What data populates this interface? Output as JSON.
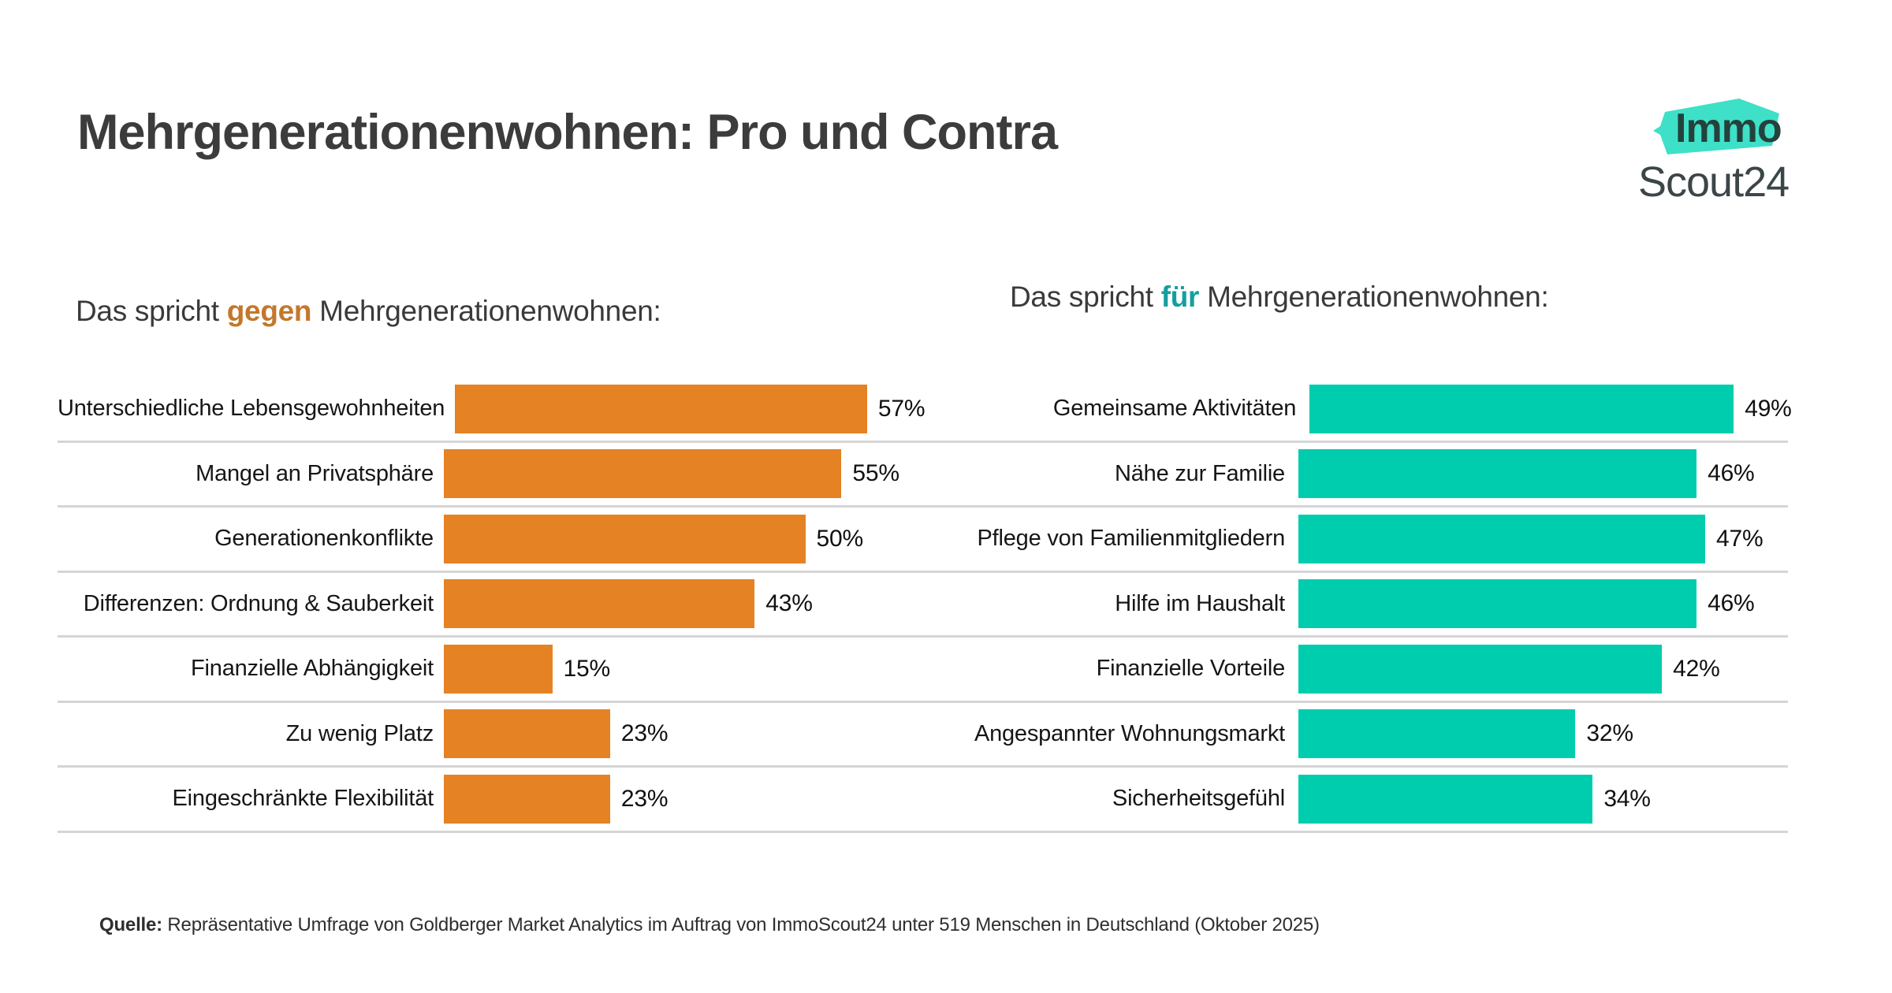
{
  "page_title": "Mehrgenerationenwohnen: Pro und Contra",
  "logo": {
    "line1": "Immo",
    "line2": "Scout24",
    "badge_color": "#3ee0c8",
    "badge_text_color": "#25413c"
  },
  "colors": {
    "contra_bar": "#e58223",
    "pro_bar": "#00cdad",
    "contra_keyword": "#c4772b",
    "pro_keyword": "#149f9e",
    "separator": "#d5d5d5",
    "title_text": "#3c3c3c"
  },
  "contra": {
    "subtitle": {
      "prefix": "Das spricht ",
      "keyword": "gegen",
      "suffix": " Mehrgenerationenwohnen:"
    },
    "rows": [
      {
        "label": "Unterschiedliche Lebensgewohnheiten",
        "value": 57,
        "value_label": "57%"
      },
      {
        "label": "Mangel an Privatsphäre",
        "value": 55,
        "value_label": "55%"
      },
      {
        "label": "Generationenkonflikte",
        "value": 50,
        "value_label": "50%"
      },
      {
        "label": "Differenzen: Ordnung & Sauberkeit",
        "value": 43,
        "value_label": "43%"
      },
      {
        "label": "Finanzielle Abhängigkeit",
        "value": 15,
        "value_label": "15%"
      },
      {
        "label": "Zu wenig Platz",
        "value": 23,
        "value_label": "23%"
      },
      {
        "label": "Eingeschränkte Flexibilität",
        "value": 23,
        "value_label": "23%"
      }
    ]
  },
  "pro": {
    "subtitle": {
      "prefix": "Das spricht ",
      "keyword": "für",
      "suffix": " Mehrgenerationenwohnen:"
    },
    "rows": [
      {
        "label": "Gemeinsame Aktivitäten",
        "value": 49,
        "value_label": "49%"
      },
      {
        "label": "Nähe zur Familie",
        "value": 46,
        "value_label": "46%"
      },
      {
        "label": "Pflege von Familienmitgliedern",
        "value": 47,
        "value_label": "47%"
      },
      {
        "label": "Hilfe im Haushalt",
        "value": 46,
        "value_label": "46%"
      },
      {
        "label": "Finanzielle Vorteile",
        "value": 42,
        "value_label": "42%"
      },
      {
        "label": "Angespannter Wohnungsmarkt",
        "value": 32,
        "value_label": "32%"
      },
      {
        "label": "Sicherheitsgefühl",
        "value": 34,
        "value_label": "34%"
      }
    ]
  },
  "footer": {
    "source_label": "Quelle:",
    "source_text": " Repräsentative Umfrage von Goldberger Market Analytics im Auftrag von ImmoScout24 unter 519 Menschen in Deutschland (Oktober 2025)"
  },
  "chart_data": [
    {
      "type": "bar",
      "orientation": "horizontal",
      "title": "Das spricht gegen Mehrgenerationenwohnen:",
      "categories": [
        "Unterschiedliche Lebensgewohnheiten",
        "Mangel an Privatsphäre",
        "Generationenkonflikte",
        "Differenzen: Ordnung & Sauberkeit",
        "Finanzielle Abhängigkeit",
        "Zu wenig Platz",
        "Eingeschränkte Flexibilität"
      ],
      "values": [
        57,
        55,
        50,
        43,
        15,
        23,
        23
      ],
      "unit": "%",
      "bar_color": "#e58223",
      "xlabel": "",
      "ylabel": "",
      "xlim": [
        0,
        62
      ],
      "grid": "row-separators-only",
      "legend": "none",
      "data_labels": "outside-end"
    },
    {
      "type": "bar",
      "orientation": "horizontal",
      "title": "Das spricht für Mehrgenerationenwohnen:",
      "categories": [
        "Gemeinsame Aktivitäten",
        "Nähe zur Familie",
        "Pflege von Familienmitgliedern",
        "Hilfe im Haushalt",
        "Finanzielle Vorteile",
        "Angespannter Wohnungsmarkt",
        "Sicherheitsgefühl"
      ],
      "values": [
        49,
        46,
        47,
        46,
        42,
        32,
        34
      ],
      "unit": "%",
      "bar_color": "#00cdad",
      "xlabel": "",
      "ylabel": "",
      "xlim": [
        0,
        54
      ],
      "grid": "row-separators-only",
      "legend": "none",
      "data_labels": "outside-end"
    }
  ]
}
